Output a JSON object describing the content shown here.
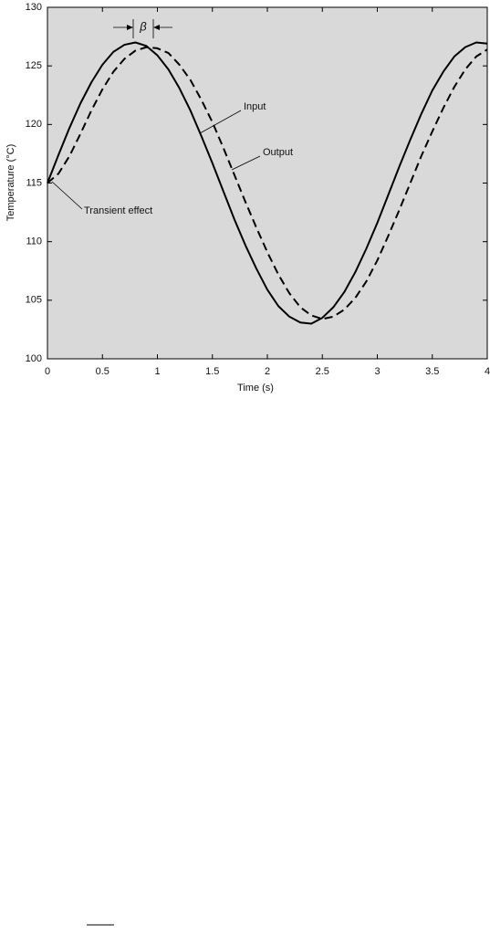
{
  "chart_data": {
    "type": "line",
    "x_label": "Time (s)",
    "y_label": "Temperature (°C)",
    "x": [
      0,
      0.1,
      0.2,
      0.3,
      0.4,
      0.5,
      0.6,
      0.7,
      0.8,
      0.9,
      1,
      1.1,
      1.2,
      1.3,
      1.4,
      1.5,
      1.6,
      1.7,
      1.8,
      1.9,
      2,
      2.1,
      2.2,
      2.3,
      2.4,
      2.5,
      2.6,
      2.7,
      2.8,
      2.9,
      3,
      3.1,
      3.2,
      3.3,
      3.4,
      3.5,
      3.6,
      3.7,
      3.8,
      3.9,
      4
    ],
    "series": [
      {
        "name": "Input",
        "color": "#000000",
        "dash": false,
        "values": [
          115,
          117.4,
          119.7,
          121.8,
          123.6,
          125.1,
          126.2,
          126.8,
          127,
          126.7,
          125.9,
          124.7,
          123.1,
          121.2,
          119,
          116.7,
          114.3,
          111.9,
          109.7,
          107.7,
          105.9,
          104.5,
          103.6,
          103.1,
          103,
          103.5,
          104.4,
          105.7,
          107.4,
          109.4,
          111.6,
          114,
          116.4,
          118.7,
          120.9,
          122.9,
          124.5,
          125.8,
          126.6,
          127,
          126.9
        ]
      },
      {
        "name": "Output",
        "color": "#000000",
        "dash": true,
        "values": [
          115,
          115.8,
          117.3,
          119.2,
          121.2,
          123,
          124.5,
          125.6,
          126.3,
          126.6,
          126.5,
          126.1,
          125.1,
          123.8,
          122.1,
          120.2,
          118,
          115.7,
          113.4,
          111.2,
          109.1,
          107.2,
          105.6,
          104.4,
          103.7,
          103.4,
          103.6,
          104.2,
          105.2,
          106.6,
          108.4,
          110.5,
          112.7,
          115,
          117.3,
          119.4,
          121.4,
          123.2,
          124.7,
          125.8,
          126.4
        ]
      }
    ],
    "annotations": [
      "Transient effect",
      "β"
    ],
    "xlim": [
      0,
      4
    ],
    "xticks": [
      0,
      0.5,
      1,
      1.5,
      2,
      2.5,
      3,
      3.5,
      4
    ],
    "ylim": [
      100,
      130
    ],
    "yticks": [
      100,
      105,
      110,
      115,
      120,
      125,
      130
    ],
    "background": "#d9d9d9"
  }
}
